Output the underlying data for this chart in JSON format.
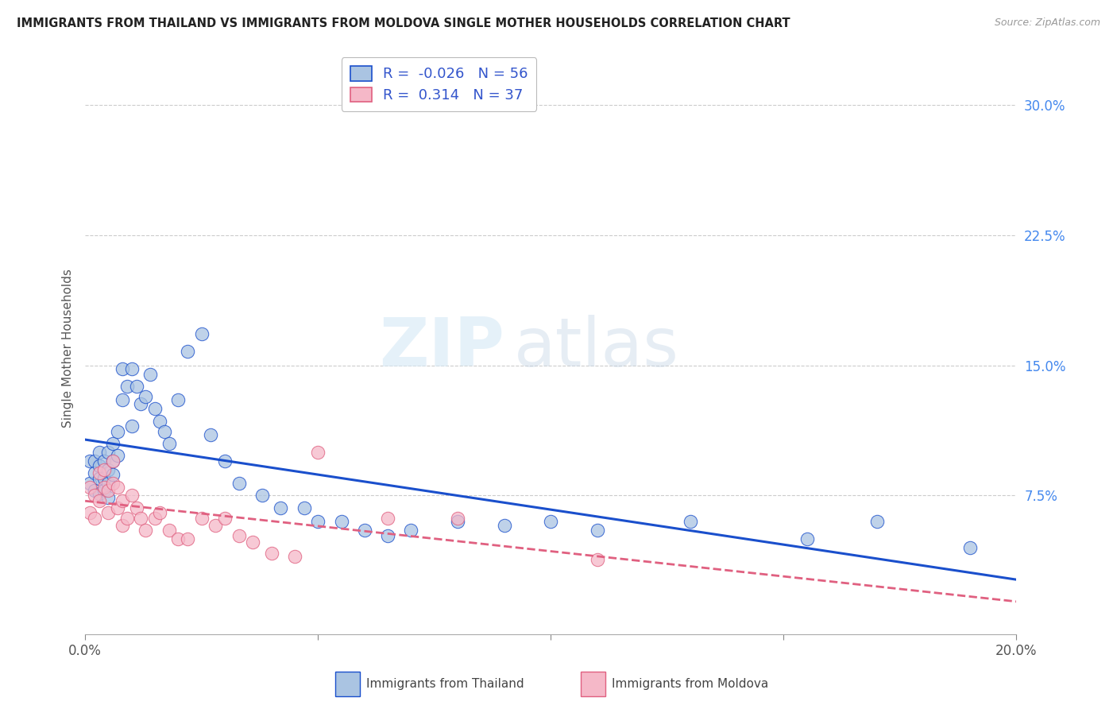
{
  "title": "IMMIGRANTS FROM THAILAND VS IMMIGRANTS FROM MOLDOVA SINGLE MOTHER HOUSEHOLDS CORRELATION CHART",
  "source": "Source: ZipAtlas.com",
  "ylabel": "Single Mother Households",
  "xlim": [
    0.0,
    0.2
  ],
  "ylim": [
    -0.005,
    0.325
  ],
  "yticks": [
    0.0,
    0.075,
    0.15,
    0.225,
    0.3
  ],
  "ytick_labels": [
    "",
    "7.5%",
    "15.0%",
    "22.5%",
    "30.0%"
  ],
  "xticks": [
    0.0,
    0.05,
    0.1,
    0.15,
    0.2
  ],
  "xtick_labels": [
    "0.0%",
    "",
    "",
    "",
    "20.0%"
  ],
  "thailand_R": -0.026,
  "thailand_N": 56,
  "moldova_R": 0.314,
  "moldova_N": 37,
  "thailand_color": "#aac4e2",
  "moldova_color": "#f5b8c8",
  "thailand_line_color": "#1a4fcc",
  "moldova_line_color": "#e06080",
  "watermark_zip": "ZIP",
  "watermark_atlas": "atlas",
  "background_color": "#ffffff",
  "thailand_x": [
    0.001,
    0.001,
    0.002,
    0.002,
    0.002,
    0.003,
    0.003,
    0.003,
    0.003,
    0.004,
    0.004,
    0.004,
    0.005,
    0.005,
    0.005,
    0.005,
    0.006,
    0.006,
    0.006,
    0.007,
    0.007,
    0.008,
    0.008,
    0.009,
    0.01,
    0.01,
    0.011,
    0.012,
    0.013,
    0.014,
    0.015,
    0.016,
    0.017,
    0.018,
    0.02,
    0.022,
    0.025,
    0.027,
    0.03,
    0.033,
    0.038,
    0.042,
    0.047,
    0.05,
    0.055,
    0.06,
    0.065,
    0.07,
    0.08,
    0.09,
    0.1,
    0.11,
    0.13,
    0.155,
    0.17,
    0.19
  ],
  "thailand_y": [
    0.095,
    0.082,
    0.095,
    0.088,
    0.078,
    0.1,
    0.092,
    0.085,
    0.076,
    0.095,
    0.085,
    0.078,
    0.1,
    0.09,
    0.082,
    0.074,
    0.105,
    0.095,
    0.087,
    0.112,
    0.098,
    0.148,
    0.13,
    0.138,
    0.148,
    0.115,
    0.138,
    0.128,
    0.132,
    0.145,
    0.125,
    0.118,
    0.112,
    0.105,
    0.13,
    0.158,
    0.168,
    0.11,
    0.095,
    0.082,
    0.075,
    0.068,
    0.068,
    0.06,
    0.06,
    0.055,
    0.052,
    0.055,
    0.06,
    0.058,
    0.06,
    0.055,
    0.06,
    0.05,
    0.06,
    0.045
  ],
  "moldova_x": [
    0.001,
    0.001,
    0.002,
    0.002,
    0.003,
    0.003,
    0.004,
    0.004,
    0.005,
    0.005,
    0.006,
    0.006,
    0.007,
    0.007,
    0.008,
    0.008,
    0.009,
    0.01,
    0.011,
    0.012,
    0.013,
    0.015,
    0.016,
    0.018,
    0.02,
    0.022,
    0.025,
    0.028,
    0.03,
    0.033,
    0.036,
    0.04,
    0.045,
    0.05,
    0.065,
    0.08,
    0.11
  ],
  "moldova_y": [
    0.08,
    0.065,
    0.075,
    0.062,
    0.088,
    0.072,
    0.09,
    0.08,
    0.078,
    0.065,
    0.095,
    0.082,
    0.08,
    0.068,
    0.072,
    0.058,
    0.062,
    0.075,
    0.068,
    0.062,
    0.055,
    0.062,
    0.065,
    0.055,
    0.05,
    0.05,
    0.062,
    0.058,
    0.062,
    0.052,
    0.048,
    0.042,
    0.04,
    0.1,
    0.062,
    0.062,
    0.038
  ]
}
